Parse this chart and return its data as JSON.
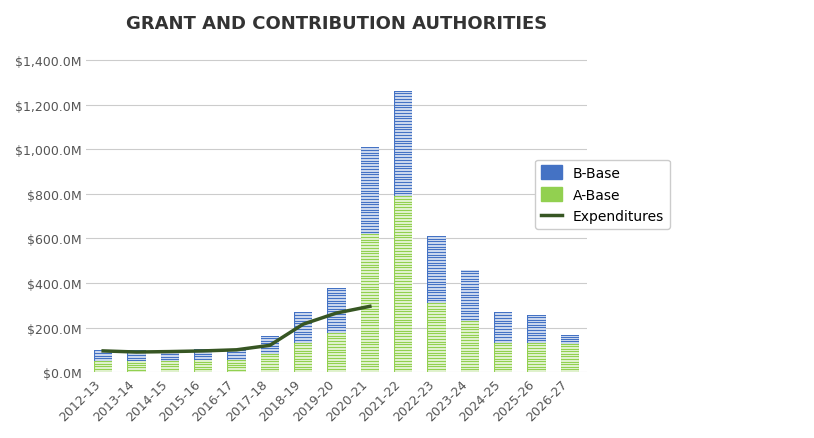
{
  "categories": [
    "2012-13",
    "2013-14",
    "2014-15",
    "2015-16",
    "2016-17",
    "2017-18",
    "2018-19",
    "2019-20",
    "2020-21",
    "2021-22",
    "2022-23",
    "2023-24",
    "2024-25",
    "2025-26",
    "2026-27"
  ],
  "a_base": [
    50,
    48,
    50,
    52,
    55,
    80,
    130,
    175,
    620,
    790,
    310,
    230,
    130,
    130,
    125
  ],
  "b_base": [
    50,
    50,
    48,
    50,
    50,
    80,
    140,
    200,
    390,
    470,
    300,
    230,
    140,
    125,
    40
  ],
  "expenditures": [
    95,
    90,
    92,
    95,
    100,
    120,
    215,
    265,
    295,
    null,
    null,
    null,
    null,
    null,
    null
  ],
  "title": "GRANT AND CONTRIBUTION AUTHORITIES",
  "ylim": [
    0,
    1450
  ],
  "yticks": [
    0,
    200,
    400,
    600,
    800,
    1000,
    1200,
    1400
  ],
  "ytick_labels": [
    "$0.0M",
    "$200.0M",
    "$400.0M",
    "$600.0M",
    "$800.0M",
    "$1,000.0M",
    "$1,200.0M",
    "$1,400.0M"
  ],
  "a_base_color": "#92d050",
  "b_base_color": "#4472c4",
  "expenditures_color": "#375623",
  "background_color": "#ffffff",
  "legend_labels": [
    "B-Base",
    "A-Base",
    "Expenditures"
  ],
  "title_fontsize": 13,
  "tick_fontsize": 9,
  "legend_fontsize": 10
}
